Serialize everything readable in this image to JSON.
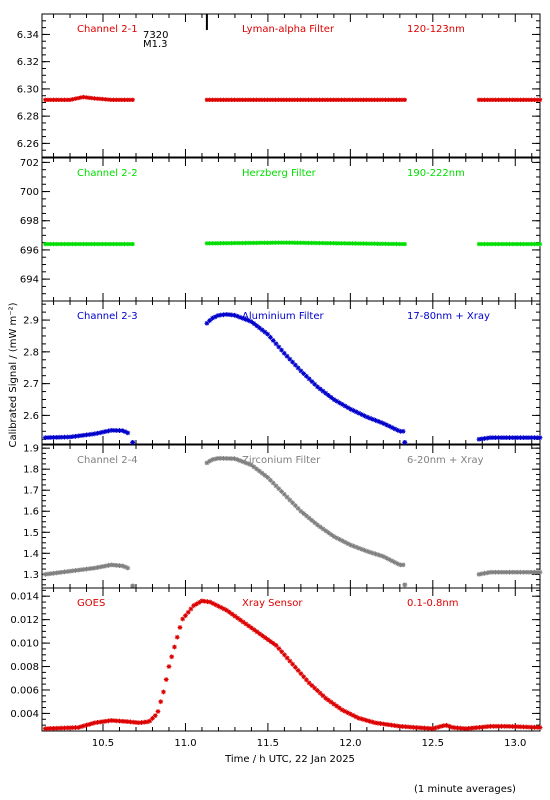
{
  "figure": {
    "ylabel": "Calibrated Signal  / (mW m⁻²)",
    "xlabel": "Time / h UTC, 22 Jan 2025",
    "footnote": "(1 minute averages)",
    "flare_marker": {
      "x": 11.13,
      "label_line1": "7320",
      "label_line2": "M1.3"
    },
    "x_ticks": [
      "10.5",
      "11.0",
      "11.5",
      "12.0",
      "12.5",
      "13.0"
    ],
    "x_tick_values": [
      10.5,
      11.0,
      11.5,
      12.0,
      12.5,
      13.0
    ],
    "xlim": [
      10.13,
      13.15
    ]
  },
  "chart_data": [
    {
      "type": "scatter",
      "name": "Channel 2-1",
      "filter": "Lyman-alpha Filter",
      "band": "120-123nm",
      "color": "#dd0000",
      "ylim": [
        6.25,
        6.355
      ],
      "y_ticks": [
        6.26,
        6.28,
        6.3,
        6.32,
        6.34
      ],
      "y_tick_labels": [
        "6.26",
        "6.28",
        "6.30",
        "6.32",
        "6.34"
      ],
      "segments": [
        {
          "x0": 10.15,
          "x1": 10.68,
          "points": [
            [
              10.15,
              6.292
            ],
            [
              10.3,
              6.292
            ],
            [
              10.38,
              6.294
            ],
            [
              10.45,
              6.293
            ],
            [
              10.55,
              6.292
            ],
            [
              10.68,
              6.292
            ]
          ]
        },
        {
          "x0": 11.13,
          "x1": 12.33,
          "points": [
            [
              11.13,
              6.292
            ],
            [
              12.33,
              6.292
            ]
          ]
        },
        {
          "x0": 12.78,
          "x1": 13.15,
          "points": [
            [
              12.78,
              6.292
            ],
            [
              13.15,
              6.292
            ]
          ]
        }
      ]
    },
    {
      "type": "scatter",
      "name": "Channel 2-2",
      "filter": "Herzberg Filter",
      "band": "190-222nm",
      "color": "#00dd00",
      "ylim": [
        692.5,
        702.3
      ],
      "y_ticks": [
        694,
        696,
        698,
        700,
        702
      ],
      "y_tick_labels": [
        "694",
        "696",
        "698",
        "700",
        "702"
      ],
      "segments": [
        {
          "x0": 10.15,
          "x1": 10.68,
          "points": [
            [
              10.15,
              696.4
            ],
            [
              10.68,
              696.4
            ]
          ]
        },
        {
          "x0": 11.13,
          "x1": 12.33,
          "points": [
            [
              11.13,
              696.45
            ],
            [
              11.6,
              696.5
            ],
            [
              12.33,
              696.4
            ]
          ]
        },
        {
          "x0": 12.78,
          "x1": 13.15,
          "points": [
            [
              12.78,
              696.4
            ],
            [
              13.15,
              696.4
            ]
          ]
        }
      ]
    },
    {
      "type": "scatter",
      "name": "Channel 2-3",
      "filter": "Aluminium Filter",
      "band": "17-80nm + Xray",
      "color": "#0000cc",
      "ylim": [
        2.51,
        2.96
      ],
      "y_ticks": [
        2.6,
        2.7,
        2.8,
        2.9
      ],
      "y_tick_labels": [
        "2.6",
        "2.7",
        "2.8",
        "2.9"
      ],
      "segments": [
        {
          "x0": 10.15,
          "x1": 10.65,
          "points": [
            [
              10.15,
              2.53
            ],
            [
              10.3,
              2.532
            ],
            [
              10.45,
              2.542
            ],
            [
              10.55,
              2.553
            ],
            [
              10.62,
              2.552
            ],
            [
              10.65,
              2.545
            ]
          ]
        },
        {
          "x0": 10.68,
          "x1": 10.68,
          "points": [
            [
              10.68,
              2.515
            ]
          ]
        },
        {
          "x0": 11.13,
          "x1": 12.32,
          "points": [
            [
              11.13,
              2.89
            ],
            [
              11.16,
              2.905
            ],
            [
              11.2,
              2.915
            ],
            [
              11.25,
              2.918
            ],
            [
              11.3,
              2.915
            ],
            [
              11.4,
              2.895
            ],
            [
              11.5,
              2.855
            ],
            [
              11.6,
              2.795
            ],
            [
              11.7,
              2.74
            ],
            [
              11.8,
              2.69
            ],
            [
              11.9,
              2.65
            ],
            [
              12.0,
              2.62
            ],
            [
              12.1,
              2.595
            ],
            [
              12.2,
              2.575
            ],
            [
              12.3,
              2.55
            ]
          ]
        },
        {
          "x0": 12.33,
          "x1": 12.33,
          "points": [
            [
              12.33,
              2.515
            ]
          ]
        },
        {
          "x0": 12.78,
          "x1": 13.15,
          "points": [
            [
              12.78,
              2.525
            ],
            [
              12.85,
              2.53
            ],
            [
              13.15,
              2.53
            ]
          ]
        }
      ]
    },
    {
      "type": "scatter",
      "name": "Channel 2-4",
      "filter": "Zirconium Filter",
      "band": "6-20nm + Xray",
      "color": "#808080",
      "ylim": [
        1.235,
        1.915
      ],
      "y_ticks": [
        1.3,
        1.4,
        1.5,
        1.6,
        1.7,
        1.8,
        1.9
      ],
      "y_tick_labels": [
        "1.3",
        "1.4",
        "1.5",
        "1.6",
        "1.7",
        "1.8",
        "1.9"
      ],
      "segments": [
        {
          "x0": 10.15,
          "x1": 10.65,
          "points": [
            [
              10.15,
              1.3
            ],
            [
              10.3,
              1.315
            ],
            [
              10.45,
              1.33
            ],
            [
              10.55,
              1.345
            ],
            [
              10.62,
              1.34
            ],
            [
              10.65,
              1.33
            ]
          ]
        },
        {
          "x0": 10.68,
          "x1": 10.68,
          "points": [
            [
              10.68,
              1.245
            ]
          ]
        },
        {
          "x0": 11.13,
          "x1": 12.32,
          "points": [
            [
              11.13,
              1.83
            ],
            [
              11.16,
              1.845
            ],
            [
              11.2,
              1.852
            ],
            [
              11.3,
              1.85
            ],
            [
              11.4,
              1.82
            ],
            [
              11.5,
              1.76
            ],
            [
              11.6,
              1.68
            ],
            [
              11.7,
              1.6
            ],
            [
              11.8,
              1.535
            ],
            [
              11.9,
              1.48
            ],
            [
              12.0,
              1.44
            ],
            [
              12.1,
              1.41
            ],
            [
              12.2,
              1.385
            ],
            [
              12.3,
              1.345
            ]
          ]
        },
        {
          "x0": 12.33,
          "x1": 12.33,
          "points": [
            [
              12.33,
              1.25
            ]
          ]
        },
        {
          "x0": 12.78,
          "x1": 13.15,
          "points": [
            [
              12.78,
              1.3
            ],
            [
              12.85,
              1.31
            ],
            [
              13.15,
              1.31
            ]
          ]
        }
      ]
    },
    {
      "type": "scatter",
      "name": "GOES",
      "filter": "Xray Sensor",
      "band": "0.1-0.8nm",
      "color": "#dd0000",
      "ylim": [
        0.0025,
        0.0147
      ],
      "y_ticks": [
        0.004,
        0.006,
        0.008,
        0.01,
        0.012,
        0.014
      ],
      "y_tick_labels": [
        "0.004",
        "0.006",
        "0.008",
        "0.010",
        "0.012",
        "0.014"
      ],
      "segments": [
        {
          "x0": 10.15,
          "x1": 13.15,
          "points": [
            [
              10.15,
              0.0027
            ],
            [
              10.35,
              0.0028
            ],
            [
              10.45,
              0.0032
            ],
            [
              10.55,
              0.0034
            ],
            [
              10.65,
              0.0033
            ],
            [
              10.72,
              0.0032
            ],
            [
              10.78,
              0.0033
            ],
            [
              10.83,
              0.004
            ],
            [
              10.87,
              0.006
            ],
            [
              10.9,
              0.008
            ],
            [
              10.94,
              0.01
            ],
            [
              10.98,
              0.012
            ],
            [
              11.05,
              0.0132
            ],
            [
              11.1,
              0.0136
            ],
            [
              11.15,
              0.0135
            ],
            [
              11.25,
              0.0128
            ],
            [
              11.35,
              0.0118
            ],
            [
              11.45,
              0.0108
            ],
            [
              11.55,
              0.0098
            ],
            [
              11.65,
              0.0082
            ],
            [
              11.75,
              0.0066
            ],
            [
              11.85,
              0.0053
            ],
            [
              11.95,
              0.0043
            ],
            [
              12.05,
              0.0036
            ],
            [
              12.15,
              0.0032
            ],
            [
              12.3,
              0.0029
            ],
            [
              12.5,
              0.0027
            ],
            [
              12.55,
              0.0029
            ],
            [
              12.58,
              0.003
            ],
            [
              12.62,
              0.0028
            ],
            [
              12.7,
              0.0027
            ],
            [
              12.85,
              0.0029
            ],
            [
              12.95,
              0.0029
            ],
            [
              13.15,
              0.0028
            ]
          ]
        }
      ]
    }
  ]
}
